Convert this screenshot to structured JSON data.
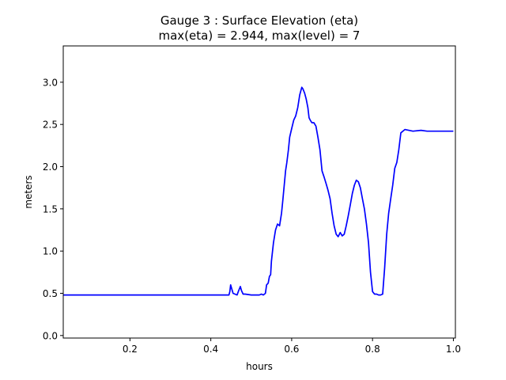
{
  "chart_data": {
    "type": "line",
    "title_line1": "Gauge 3 : Surface Elevation (eta)",
    "title_line2": "max(eta) =   2.944,    max(level) = 7",
    "xlabel": "hours",
    "ylabel": "meters",
    "xlim": [
      0.035,
      1.005
    ],
    "ylim": [
      -0.03,
      3.43
    ],
    "xticks": [
      0.2,
      0.4,
      0.6,
      0.8,
      1.0
    ],
    "xtick_labels": [
      "0.2",
      "0.4",
      "0.6",
      "0.8",
      "1.0"
    ],
    "yticks": [
      0.0,
      0.5,
      1.0,
      1.5,
      2.0,
      2.5,
      3.0
    ],
    "ytick_labels": [
      "0.0",
      "0.5",
      "1.0",
      "1.5",
      "2.0",
      "2.5",
      "3.0"
    ],
    "grid": false,
    "line_color": "#0000ff",
    "series": [
      {
        "x": [
          0.035,
          0.1,
          0.2,
          0.3,
          0.4,
          0.445,
          0.447,
          0.449,
          0.452,
          0.455,
          0.465,
          0.468,
          0.473,
          0.476,
          0.48,
          0.485,
          0.5,
          0.52,
          0.525,
          0.53,
          0.535,
          0.538,
          0.542,
          0.545,
          0.548,
          0.55,
          0.555,
          0.56,
          0.565,
          0.57,
          0.575,
          0.578,
          0.582,
          0.585,
          0.588,
          0.592,
          0.595,
          0.6,
          0.605,
          0.61,
          0.615,
          0.62,
          0.625,
          0.628,
          0.632,
          0.636,
          0.64,
          0.643,
          0.646,
          0.65,
          0.655,
          0.66,
          0.665,
          0.67,
          0.675,
          0.68,
          0.685,
          0.69,
          0.695,
          0.7,
          0.705,
          0.71,
          0.715,
          0.72,
          0.725,
          0.73,
          0.735,
          0.74,
          0.745,
          0.75,
          0.755,
          0.76,
          0.765,
          0.77,
          0.775,
          0.78,
          0.785,
          0.79,
          0.795,
          0.8,
          0.805,
          0.81,
          0.815,
          0.82,
          0.825,
          0.83,
          0.835,
          0.84,
          0.845,
          0.85,
          0.855,
          0.86,
          0.865,
          0.87,
          0.88,
          0.9,
          0.92,
          0.935,
          0.94,
          0.945,
          0.95,
          0.955,
          0.96,
          0.965,
          0.97,
          0.975,
          0.98,
          0.985,
          0.99,
          0.995,
          1.0
        ],
        "y": [
          0.48,
          0.48,
          0.48,
          0.48,
          0.48,
          0.48,
          0.52,
          0.6,
          0.55,
          0.5,
          0.48,
          0.52,
          0.58,
          0.53,
          0.49,
          0.49,
          0.48,
          0.48,
          0.49,
          0.48,
          0.5,
          0.6,
          0.62,
          0.7,
          0.72,
          0.88,
          1.1,
          1.25,
          1.32,
          1.3,
          1.45,
          1.6,
          1.8,
          1.95,
          2.05,
          2.2,
          2.35,
          2.45,
          2.55,
          2.6,
          2.7,
          2.85,
          2.94,
          2.92,
          2.87,
          2.8,
          2.7,
          2.58,
          2.55,
          2.52,
          2.52,
          2.48,
          2.35,
          2.2,
          1.95,
          1.88,
          1.8,
          1.72,
          1.62,
          1.45,
          1.3,
          1.2,
          1.17,
          1.22,
          1.18,
          1.2,
          1.3,
          1.42,
          1.55,
          1.68,
          1.78,
          1.84,
          1.82,
          1.75,
          1.62,
          1.5,
          1.32,
          1.1,
          0.75,
          0.52,
          0.49,
          0.49,
          0.48,
          0.48,
          0.49,
          0.8,
          1.2,
          1.45,
          1.62,
          1.78,
          1.98,
          2.05,
          2.2,
          2.4,
          2.44,
          2.42,
          2.43,
          2.42,
          2.42,
          2.42,
          2.42,
          2.42,
          2.42,
          2.42,
          2.42,
          2.42,
          2.42,
          2.42,
          2.42,
          2.42,
          2.42
        ]
      }
    ]
  }
}
